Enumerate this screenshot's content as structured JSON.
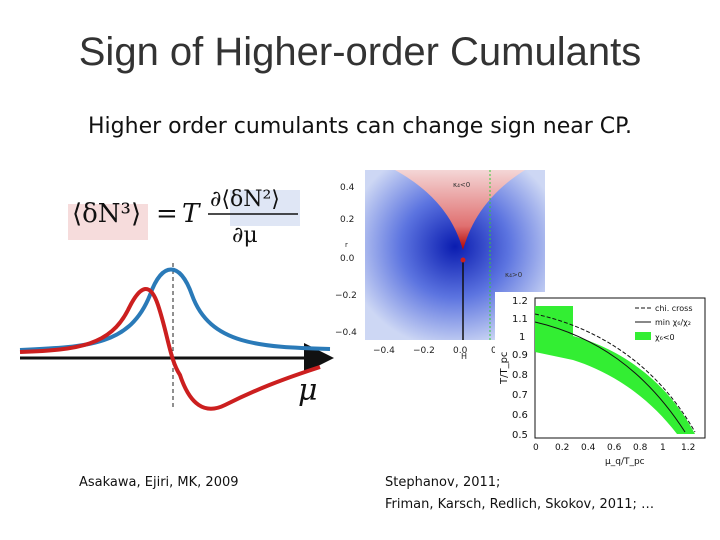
{
  "title": "Sign of Higher-order Cumulants",
  "subtitle": "Higher order cumulants can change sign near CP.",
  "left_citation": "Asakawa, Ejiri, MK, 2009",
  "right_citation": {
    "line1": "Stephanov, 2011;",
    "line2": "Friman, Karsch, Redlich, Skokov, 2011; …"
  },
  "equation": {
    "lhs": "⟨δN³⟩",
    "equals": "=",
    "factor": "T",
    "numerator": "∂⟨δN²⟩",
    "denominator": "∂μ"
  },
  "mu_label": "μ",
  "colors": {
    "blue_curve": "#2a7ab8",
    "red_curve": "#cc1f1f",
    "green_band": "#33ee33"
  },
  "phase_plot": {
    "y_ticks": [
      "0.4",
      "0.2",
      "0.0",
      "−0.2",
      "−0.4"
    ],
    "x_ticks": [
      "−0.4",
      "−0.2",
      "0.0",
      "0"
    ],
    "x_label": "H",
    "y_label": "r",
    "label_top": "κ₄<0",
    "label_right": "κ₄>0"
  },
  "band_plot": {
    "y_ticks": [
      "1.2",
      "1.1",
      "1",
      "0.9",
      "0.8",
      "0.7",
      "0.6",
      "0.5"
    ],
    "x_ticks": [
      "0",
      "0.2",
      "0.4",
      "0.6",
      "0.8",
      "1",
      "1.2"
    ],
    "y_label": "T/T_pc",
    "x_label": "μ_q/T_pc",
    "legend": [
      "chi. cross",
      "min χ₆/χ₂",
      "χ₆<0"
    ]
  }
}
